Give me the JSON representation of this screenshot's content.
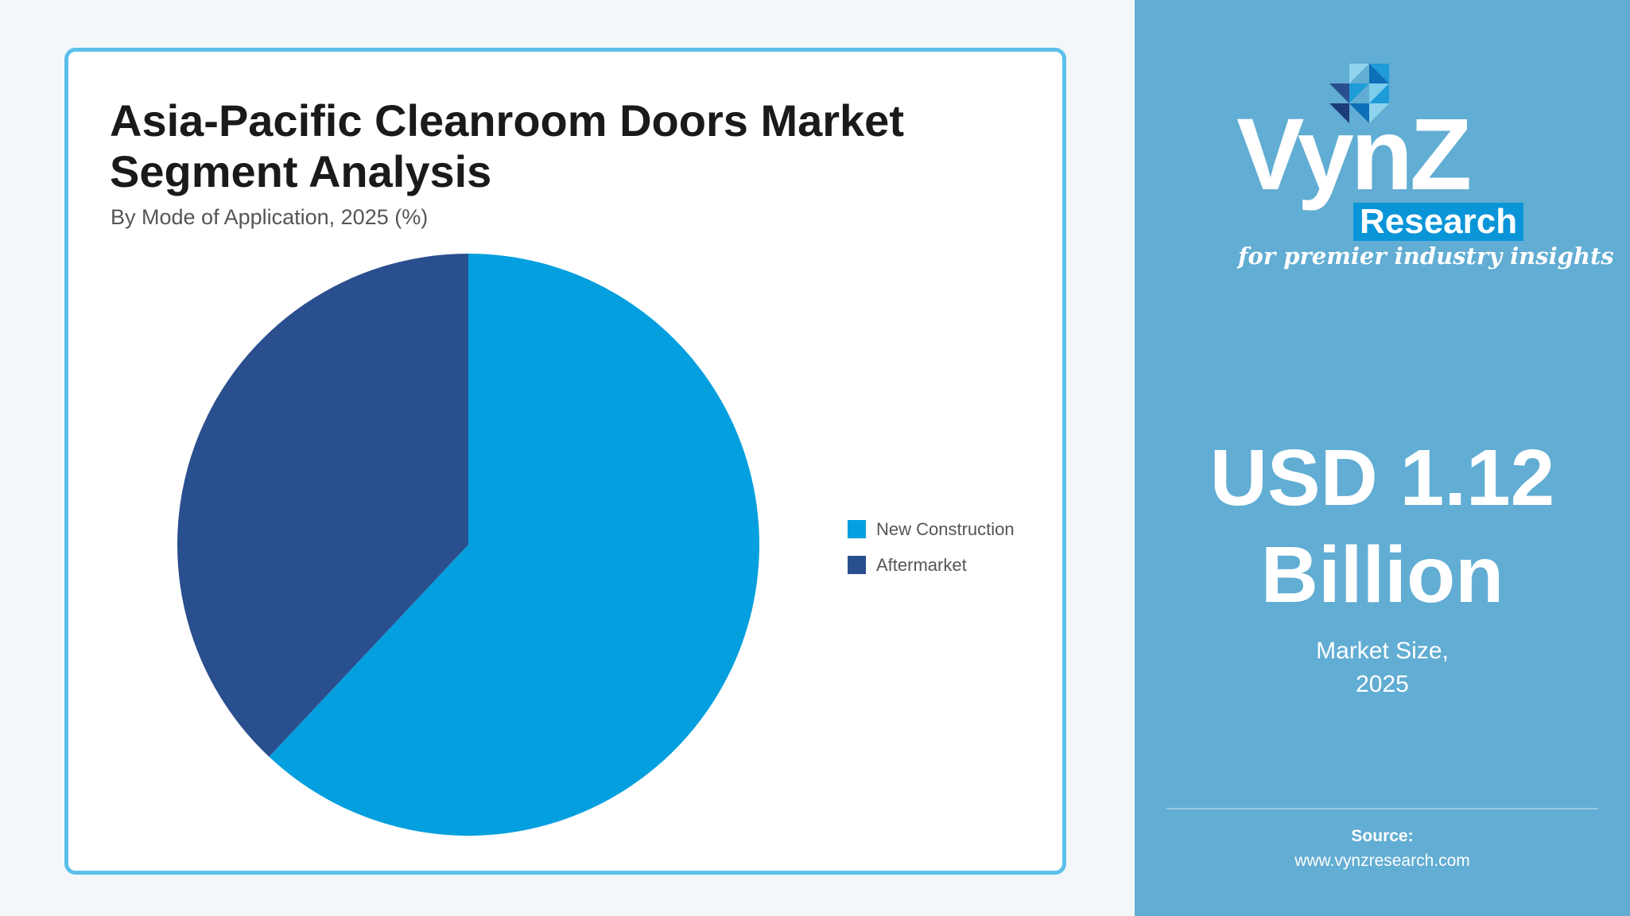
{
  "chart_data": {
    "type": "pie",
    "title": "Asia-Pacific Cleanroom Doors Market Segment Analysis",
    "subtitle": "By Mode of Application, 2025 (%)",
    "categories": [
      "New Construction",
      "Aftermarket"
    ],
    "values": [
      62,
      38
    ],
    "colors": [
      "#049fde",
      "#2a4f8f"
    ],
    "legend_position": "right",
    "start_angle": "12 o'clock, clockwise"
  },
  "side_panel": {
    "logo": {
      "main": "VynZ",
      "research": "Research",
      "tagline": "for premier industry insights"
    },
    "market_value_line1": "USD 1.12",
    "market_value_line2": "Billion",
    "market_label_line1": "Market Size,",
    "market_label_line2": "2025",
    "source_label": "Source:",
    "source_url": "www.vynzresearch.com",
    "background_color": "#62add3"
  }
}
